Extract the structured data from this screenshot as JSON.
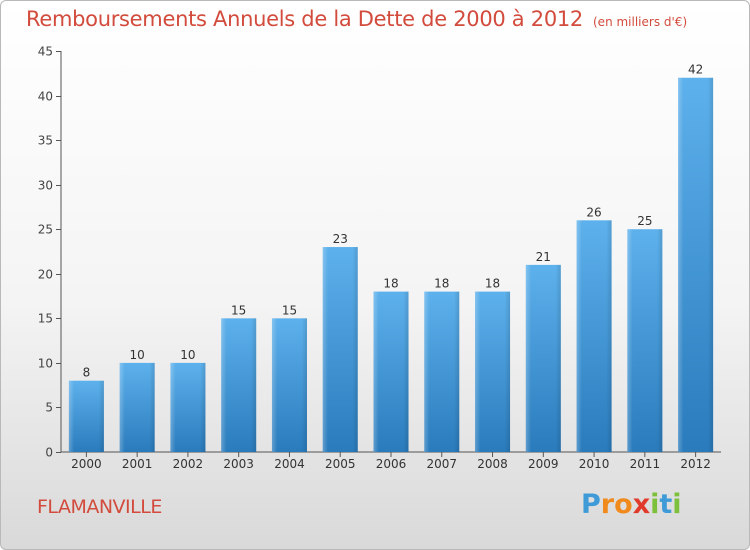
{
  "chart_data": {
    "type": "bar",
    "title": "Remboursements Annuels de la Dette de 2000 à 2012",
    "subtitle": "(en milliers d'€)",
    "categories": [
      "2000",
      "2001",
      "2002",
      "2003",
      "2004",
      "2005",
      "2006",
      "2007",
      "2008",
      "2009",
      "2010",
      "2011",
      "2012"
    ],
    "values": [
      8,
      10,
      10,
      15,
      15,
      23,
      18,
      18,
      18,
      21,
      26,
      25,
      42
    ],
    "ylim": [
      0,
      45
    ],
    "yticks": [
      0,
      5,
      10,
      15,
      20,
      25,
      30,
      35,
      40,
      45
    ],
    "grid": false,
    "data_labels": true,
    "colors": {
      "bar_light": "#5aaeea",
      "bar_dark": "#2a7dbe",
      "title": "#d24b3c"
    }
  },
  "town": "FLAMANVILLE",
  "logo": {
    "text": "Proxiti",
    "letters": [
      {
        "ch": "P",
        "color": "#3f9ad8"
      },
      {
        "ch": "r",
        "color": "#f08a1c"
      },
      {
        "ch": "o",
        "color": "#f08a1c"
      },
      {
        "ch": "x",
        "color": "#e23a2a"
      },
      {
        "ch": "i",
        "color": "#7dc03b"
      },
      {
        "ch": "t",
        "color": "#3f9ad8"
      },
      {
        "ch": "i",
        "color": "#7dc03b"
      }
    ]
  }
}
